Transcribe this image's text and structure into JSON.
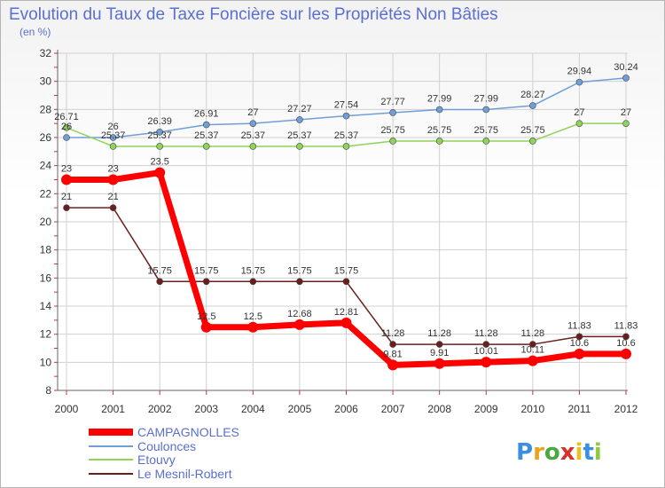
{
  "chart_data": {
    "type": "line",
    "title": "Evolution du Taux de Taxe Foncière sur les Propriétés Non Bâties",
    "ylabel": "(en %)",
    "xlabel": "",
    "categories": [
      "2000",
      "2001",
      "2002",
      "2003",
      "2004",
      "2005",
      "2006",
      "2007",
      "2008",
      "2009",
      "2010",
      "2011",
      "2012"
    ],
    "ylim": [
      8,
      32
    ],
    "yticks": [
      8,
      10,
      12,
      14,
      16,
      18,
      20,
      22,
      24,
      26,
      28,
      30,
      32
    ],
    "series": [
      {
        "name": "CAMPAGNOLLES",
        "color": "#ff0000",
        "values": [
          23,
          23,
          23.5,
          12.5,
          12.5,
          12.68,
          12.81,
          9.81,
          9.91,
          10.01,
          10.11,
          10.6,
          10.6
        ],
        "labels": [
          "23",
          "23",
          "23.5",
          "12.5",
          "12.5",
          "12.68",
          "12.81",
          "9.81",
          "9.91",
          "10.01",
          "10.11",
          "10.6",
          "10.6"
        ]
      },
      {
        "name": "Coulonces",
        "color": "#6f9fd8",
        "values": [
          26,
          26,
          26.39,
          26.91,
          27,
          27.27,
          27.54,
          27.77,
          27.99,
          27.99,
          28.27,
          29.94,
          30.24
        ],
        "labels": [
          "26",
          "26",
          "26.39",
          "26.91",
          "27",
          "27.27",
          "27.54",
          "27.77",
          "27.99",
          "27.99",
          "28.27",
          "29.94",
          "30.24"
        ]
      },
      {
        "name": "Etouvy",
        "color": "#8fd35a",
        "values": [
          26.71,
          25.37,
          25.37,
          25.37,
          25.37,
          25.37,
          25.37,
          25.75,
          25.75,
          25.75,
          25.75,
          27,
          27
        ],
        "labels": [
          "26.71",
          "25.37",
          "25.37",
          "25.37",
          "25.37",
          "25.37",
          "25.37",
          "25.75",
          "25.75",
          "25.75",
          "25.75",
          "27",
          "27"
        ]
      },
      {
        "name": "Le Mesnil-Robert",
        "color": "#6b1e1e",
        "values": [
          21,
          21,
          15.75,
          15.75,
          15.75,
          15.75,
          15.75,
          11.28,
          11.28,
          11.28,
          11.28,
          11.83,
          11.83
        ],
        "labels": [
          "21",
          "21",
          "15.75",
          "15.75",
          "15.75",
          "15.75",
          "15.75",
          "11.28",
          "11.28",
          "11.28",
          "11.28",
          "11.83",
          "11.83"
        ]
      }
    ],
    "legend_position": "bottom-left"
  },
  "logo": {
    "letters": [
      "P",
      "r",
      "o",
      "x",
      "i",
      "t",
      "i"
    ],
    "colors": [
      "#3b8fe0",
      "#e8a21c",
      "#4aa83c",
      "#d8302a",
      "#e8c21c",
      "#3b8fe0",
      "#8fc83c"
    ]
  }
}
